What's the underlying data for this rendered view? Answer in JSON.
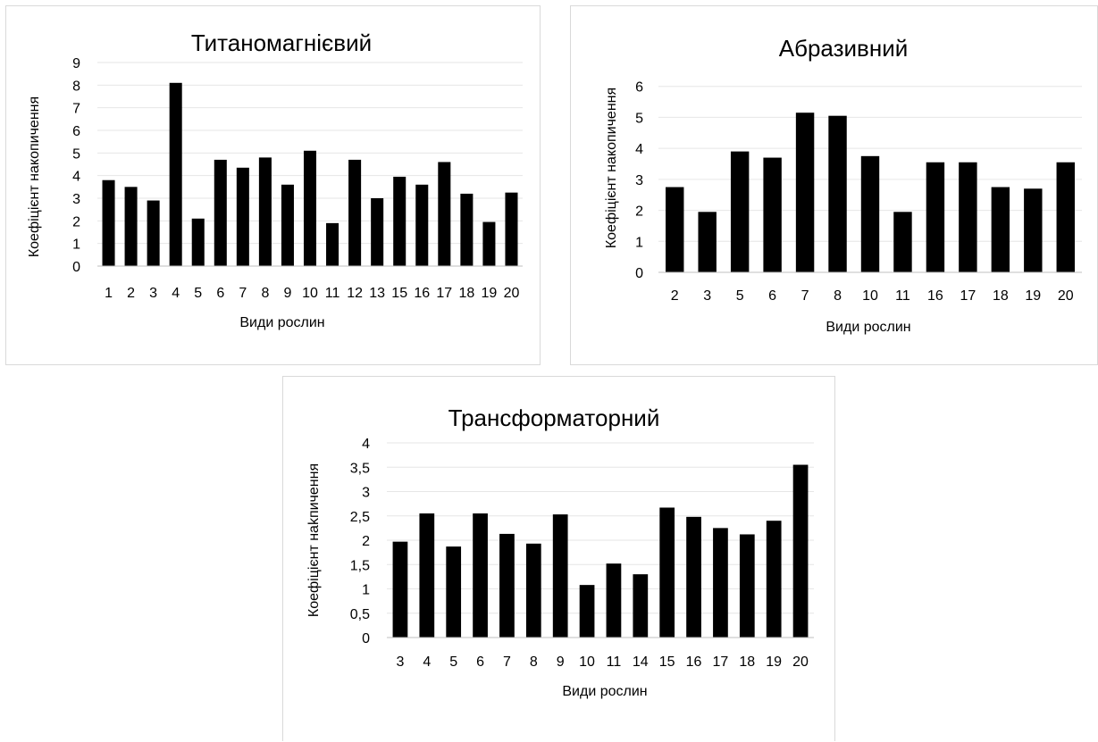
{
  "chart_data": [
    {
      "type": "bar",
      "title": "Титаномагнієвий",
      "xlabel": "Види рослин",
      "ylabel": "Коефіцієнт накопичення",
      "categories": [
        "1",
        "2",
        "3",
        "4",
        "5",
        "6",
        "7",
        "8",
        "9",
        "10",
        "11",
        "12",
        "13",
        "15",
        "16",
        "17",
        "18",
        "19",
        "20"
      ],
      "values": [
        3.8,
        3.5,
        2.9,
        8.1,
        2.1,
        4.7,
        4.35,
        4.8,
        3.6,
        5.1,
        1.9,
        4.7,
        3.0,
        3.95,
        3.6,
        4.6,
        3.2,
        1.95,
        3.25
      ],
      "ylim": [
        0,
        9
      ],
      "yticks": [
        "0",
        "1",
        "2",
        "3",
        "4",
        "5",
        "6",
        "7",
        "8",
        "9"
      ],
      "grid": true,
      "bar_color": "#000000"
    },
    {
      "type": "bar",
      "title": "Абразивний",
      "xlabel": "Види рослин",
      "ylabel": "Коефіцієнт накопичення",
      "categories": [
        "2",
        "3",
        "5",
        "6",
        "7",
        "8",
        "10",
        "11",
        "16",
        "17",
        "18",
        "19",
        "20"
      ],
      "values": [
        2.75,
        1.95,
        3.9,
        3.7,
        5.15,
        5.05,
        3.75,
        1.95,
        3.55,
        3.55,
        2.75,
        2.7,
        3.55
      ],
      "ylim": [
        0,
        7
      ],
      "yticks": [
        "0",
        "1",
        "2",
        "3",
        "4",
        "5",
        "6"
      ],
      "grid": true,
      "bar_color": "#000000"
    },
    {
      "type": "bar",
      "title": "Трансформаторний",
      "xlabel": "Види рослин",
      "ylabel": "Коефіцієнт наkпичення",
      "categories": [
        "3",
        "4",
        "5",
        "6",
        "7",
        "8",
        "9",
        "10",
        "11",
        "14",
        "15",
        "16",
        "17",
        "18",
        "19",
        "20"
      ],
      "values": [
        1.97,
        2.55,
        1.87,
        2.55,
        2.13,
        1.93,
        2.53,
        1.08,
        1.52,
        1.3,
        2.67,
        2.48,
        2.25,
        2.12,
        2.4,
        3.55
      ],
      "ylim": [
        0,
        4
      ],
      "yticks": [
        "0",
        "0,5",
        "1",
        "1,5",
        "2",
        "2,5",
        "3",
        "3,5",
        "4"
      ],
      "grid": true,
      "bar_color": "#000000"
    }
  ]
}
